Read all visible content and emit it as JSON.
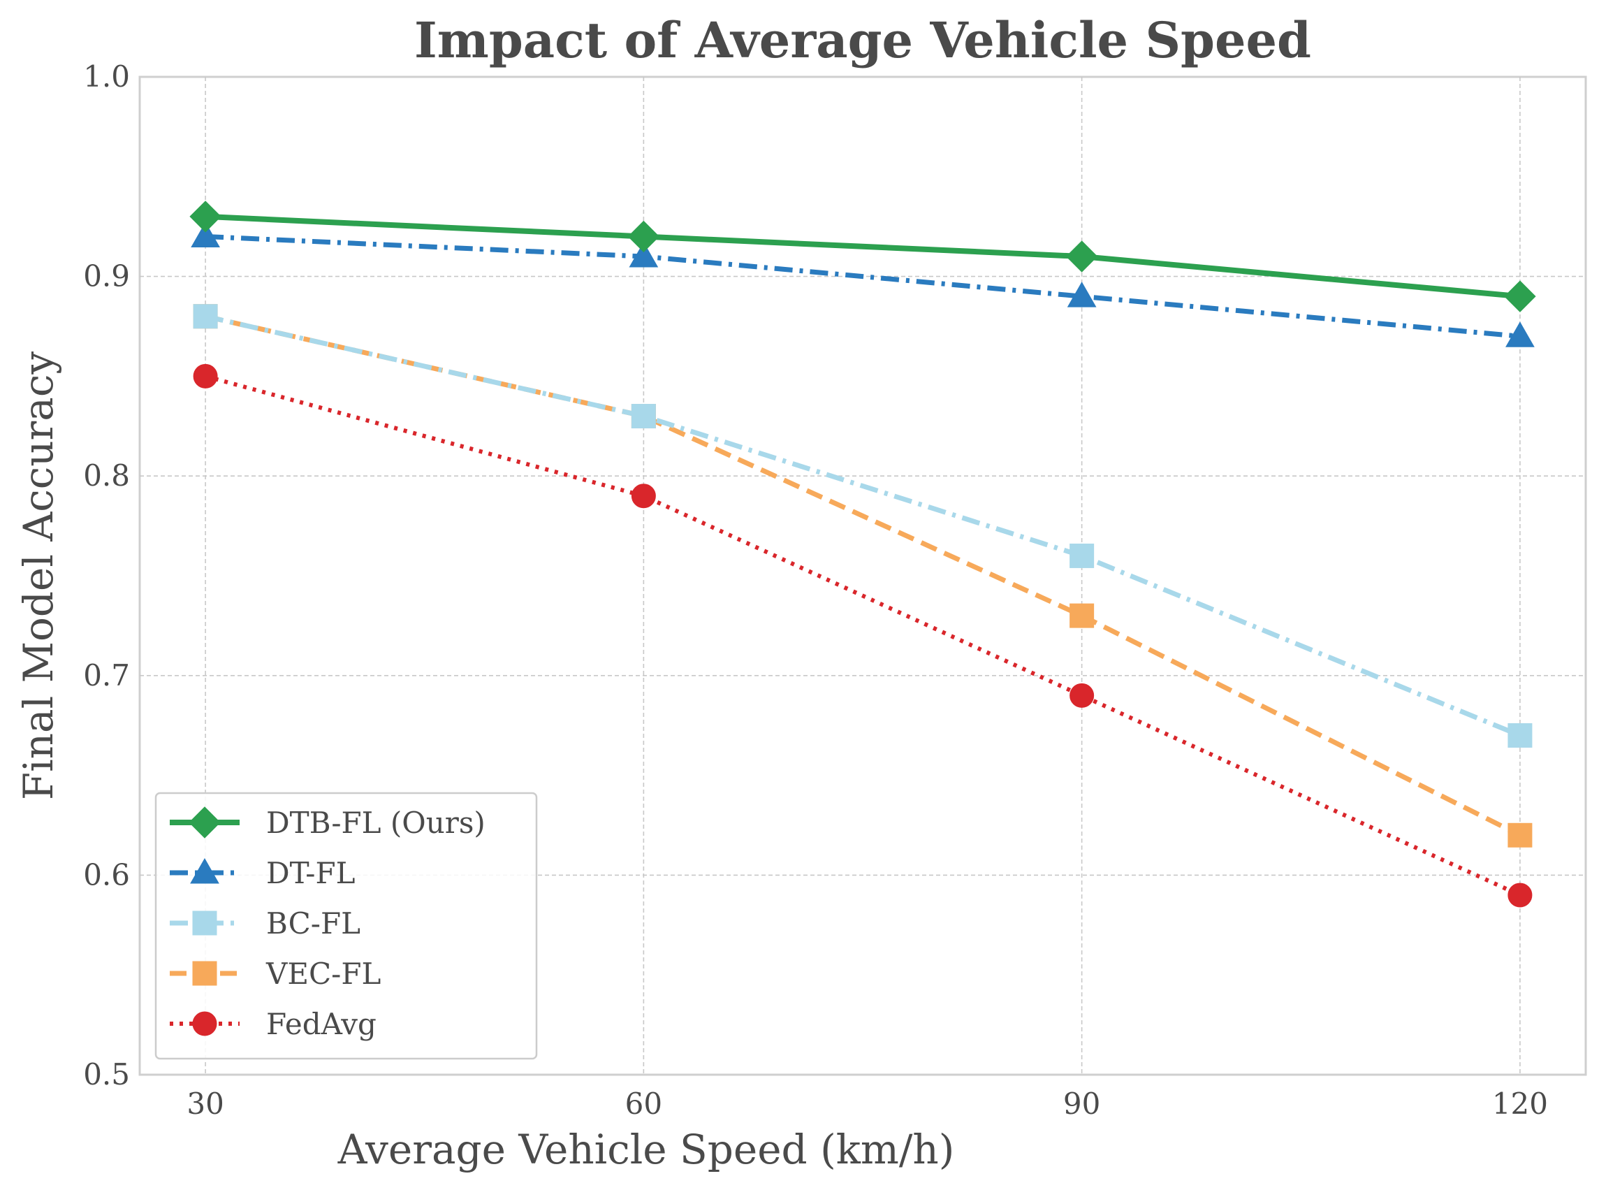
{
  "chart_data": {
    "type": "line",
    "title": "Impact of Average Vehicle Speed",
    "xlabel": "Average Vehicle Speed (km/h)",
    "ylabel": "Final Model Accuracy",
    "x": [
      30,
      60,
      90,
      120
    ],
    "x_ticks": [
      "30",
      "60",
      "90",
      "120"
    ],
    "xlim": [
      25.5,
      124.5
    ],
    "ylim": [
      0.5,
      1.0
    ],
    "y_ticks": [
      "0.5",
      "0.6",
      "0.7",
      "0.8",
      "0.9",
      "1.0"
    ],
    "grid": true,
    "legend_position": "lower-left",
    "series": [
      {
        "name": "DTB-FL (Ours)",
        "values": [
          0.93,
          0.92,
          0.91,
          0.89
        ],
        "color": "#2ca04f",
        "marker": "diamond",
        "linestyle": "solid"
      },
      {
        "name": "DT-FL",
        "values": [
          0.92,
          0.91,
          0.89,
          0.87
        ],
        "color": "#2a7bbf",
        "marker": "triangle",
        "linestyle": "dashdot"
      },
      {
        "name": "BC-FL",
        "values": [
          0.88,
          0.83,
          0.76,
          0.67
        ],
        "color": "#a8d8ea",
        "marker": "square",
        "linestyle": "dashdot"
      },
      {
        "name": "VEC-FL",
        "values": [
          0.88,
          0.83,
          0.73,
          0.62
        ],
        "color": "#f7a95a",
        "marker": "square",
        "linestyle": "dashed"
      },
      {
        "name": "FedAvg",
        "values": [
          0.85,
          0.79,
          0.69,
          0.59
        ],
        "color": "#d9262b",
        "marker": "circle",
        "linestyle": "dotted"
      }
    ]
  }
}
